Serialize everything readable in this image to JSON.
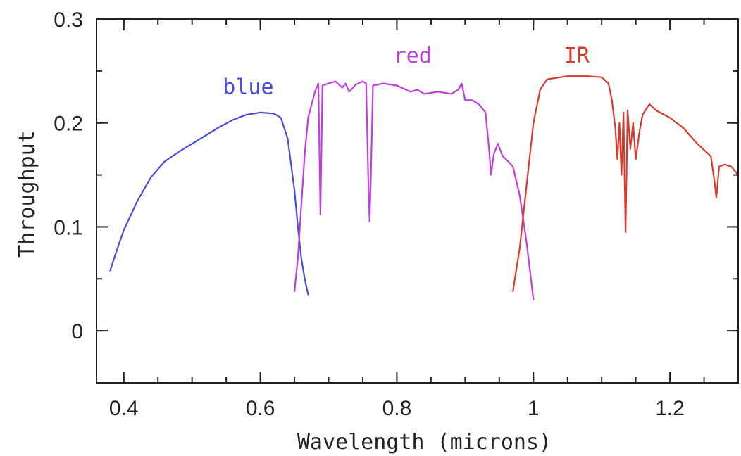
{
  "chart_data": {
    "type": "line",
    "xlabel": "Wavelength (microns)",
    "ylabel": "Throughput",
    "xlim": [
      0.36,
      1.3
    ],
    "ylim": [
      -0.05,
      0.3
    ],
    "x_ticks": [
      {
        "value": 0.4,
        "label": "0.4"
      },
      {
        "value": 0.6,
        "label": "0.6"
      },
      {
        "value": 0.8,
        "label": "0.8"
      },
      {
        "value": 1.0,
        "label": "1"
      },
      {
        "value": 1.2,
        "label": "1.2"
      }
    ],
    "y_ticks": [
      {
        "value": 0.0,
        "label": "0"
      },
      {
        "value": 0.1,
        "label": "0.1"
      },
      {
        "value": 0.2,
        "label": "0.2"
      },
      {
        "value": 0.3,
        "label": "0.3"
      }
    ],
    "x_minor_step": 0.05,
    "y_minor_step": 0.05,
    "grid": false,
    "series": [
      {
        "name": "blue",
        "color": "#4a4ce0",
        "label_at": [
          0.545,
          0.228
        ],
        "points": [
          [
            0.38,
            0.058
          ],
          [
            0.39,
            0.078
          ],
          [
            0.4,
            0.097
          ],
          [
            0.42,
            0.125
          ],
          [
            0.44,
            0.148
          ],
          [
            0.46,
            0.163
          ],
          [
            0.48,
            0.172
          ],
          [
            0.5,
            0.18
          ],
          [
            0.52,
            0.188
          ],
          [
            0.54,
            0.196
          ],
          [
            0.56,
            0.203
          ],
          [
            0.58,
            0.208
          ],
          [
            0.6,
            0.21
          ],
          [
            0.62,
            0.209
          ],
          [
            0.63,
            0.205
          ],
          [
            0.64,
            0.185
          ],
          [
            0.65,
            0.135
          ],
          [
            0.655,
            0.1
          ],
          [
            0.66,
            0.07
          ],
          [
            0.665,
            0.05
          ],
          [
            0.67,
            0.035
          ]
        ]
      },
      {
        "name": "red",
        "color": "#c03ee0",
        "label_at": [
          0.795,
          0.258
        ],
        "points": [
          [
            0.65,
            0.038
          ],
          [
            0.655,
            0.07
          ],
          [
            0.66,
            0.12
          ],
          [
            0.665,
            0.17
          ],
          [
            0.67,
            0.205
          ],
          [
            0.68,
            0.23
          ],
          [
            0.685,
            0.238
          ],
          [
            0.688,
            0.112
          ],
          [
            0.691,
            0.236
          ],
          [
            0.7,
            0.238
          ],
          [
            0.71,
            0.24
          ],
          [
            0.72,
            0.234
          ],
          [
            0.725,
            0.238
          ],
          [
            0.73,
            0.23
          ],
          [
            0.74,
            0.237
          ],
          [
            0.75,
            0.24
          ],
          [
            0.755,
            0.238
          ],
          [
            0.758,
            0.15
          ],
          [
            0.76,
            0.105
          ],
          [
            0.762,
            0.15
          ],
          [
            0.765,
            0.236
          ],
          [
            0.78,
            0.238
          ],
          [
            0.8,
            0.236
          ],
          [
            0.82,
            0.23
          ],
          [
            0.83,
            0.232
          ],
          [
            0.84,
            0.228
          ],
          [
            0.86,
            0.23
          ],
          [
            0.88,
            0.228
          ],
          [
            0.89,
            0.232
          ],
          [
            0.895,
            0.238
          ],
          [
            0.9,
            0.222
          ],
          [
            0.91,
            0.222
          ],
          [
            0.92,
            0.218
          ],
          [
            0.93,
            0.21
          ],
          [
            0.932,
            0.195
          ],
          [
            0.935,
            0.175
          ],
          [
            0.938,
            0.15
          ],
          [
            0.942,
            0.17
          ],
          [
            0.948,
            0.18
          ],
          [
            0.955,
            0.168
          ],
          [
            0.96,
            0.165
          ],
          [
            0.97,
            0.158
          ],
          [
            0.98,
            0.13
          ],
          [
            0.99,
            0.085
          ],
          [
            1.0,
            0.03
          ]
        ]
      },
      {
        "name": "IR",
        "color": "#d93a2b",
        "label_at": [
          1.045,
          0.258
        ],
        "points": [
          [
            0.97,
            0.038
          ],
          [
            0.98,
            0.08
          ],
          [
            0.99,
            0.14
          ],
          [
            1.0,
            0.2
          ],
          [
            1.01,
            0.232
          ],
          [
            1.02,
            0.242
          ],
          [
            1.05,
            0.245
          ],
          [
            1.08,
            0.245
          ],
          [
            1.1,
            0.244
          ],
          [
            1.11,
            0.238
          ],
          [
            1.115,
            0.222
          ],
          [
            1.12,
            0.195
          ],
          [
            1.123,
            0.165
          ],
          [
            1.126,
            0.2
          ],
          [
            1.129,
            0.15
          ],
          [
            1.132,
            0.21
          ],
          [
            1.135,
            0.095
          ],
          [
            1.138,
            0.212
          ],
          [
            1.142,
            0.175
          ],
          [
            1.146,
            0.2
          ],
          [
            1.15,
            0.165
          ],
          [
            1.155,
            0.19
          ],
          [
            1.16,
            0.208
          ],
          [
            1.17,
            0.218
          ],
          [
            1.18,
            0.212
          ],
          [
            1.2,
            0.205
          ],
          [
            1.22,
            0.195
          ],
          [
            1.24,
            0.18
          ],
          [
            1.26,
            0.168
          ],
          [
            1.265,
            0.145
          ],
          [
            1.268,
            0.128
          ],
          [
            1.272,
            0.158
          ],
          [
            1.28,
            0.16
          ],
          [
            1.29,
            0.158
          ],
          [
            1.3,
            0.15
          ]
        ]
      }
    ]
  }
}
